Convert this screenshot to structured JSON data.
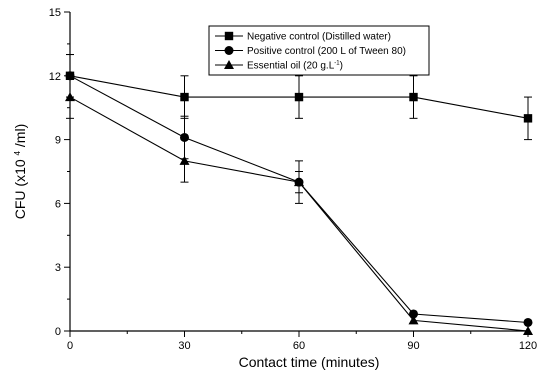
{
  "chart_data": {
    "type": "line",
    "title": "",
    "xlabel": "Contact time (minutes)",
    "ylabel": "CFU (x10 4/ml)",
    "ylabel_parts": {
      "prefix": "CFU (x10",
      "superscript": "4",
      "suffix": "/ml)"
    },
    "xlim": [
      0,
      120
    ],
    "ylim": [
      0,
      15
    ],
    "x_ticks": [
      "0",
      "30",
      "60",
      "90",
      "120"
    ],
    "y_ticks": [
      "0",
      "3",
      "6",
      "9",
      "12",
      "15"
    ],
    "x": [
      0,
      30,
      60,
      90,
      120
    ],
    "grid": false,
    "legend_position": "top-right",
    "series": [
      {
        "name": "Negative control (Distilled water)",
        "marker": "square",
        "values": [
          12,
          11,
          11,
          11,
          10
        ],
        "errors": [
          1,
          1,
          1,
          1,
          1
        ]
      },
      {
        "name": "Positive control (200 L of Tween 80)",
        "marker": "circle",
        "values": [
          12,
          9.1,
          7,
          0.8,
          0.4
        ],
        "errors": [
          1,
          1,
          1,
          0,
          0
        ]
      },
      {
        "name": "Essential oil (20 g.L-1)",
        "marker": "triangle",
        "values": [
          11,
          8,
          7,
          0.5,
          0
        ],
        "errors": [
          1,
          1,
          0.5,
          0,
          0
        ]
      }
    ],
    "legend_labels": [
      {
        "prefix": "Negative control (Distilled water)",
        "sup": ""
      },
      {
        "prefix": "Positive control (200     L of Tween 80)",
        "sup": ""
      },
      {
        "prefix": "Essential oil (20     g.L",
        "sup": "-1",
        "suffix": ")"
      }
    ]
  }
}
